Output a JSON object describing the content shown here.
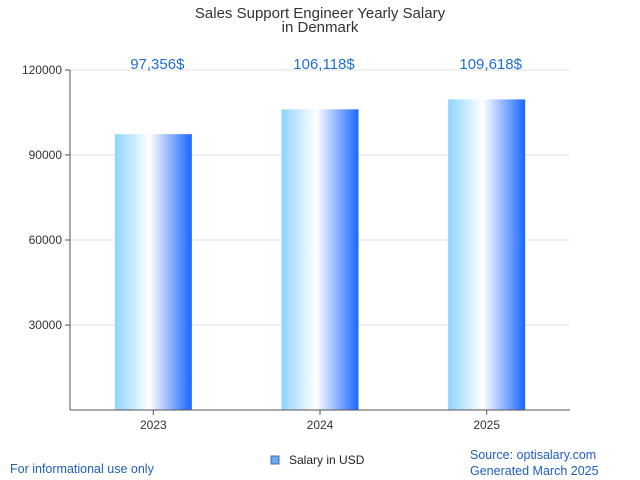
{
  "chart_data": {
    "type": "bar",
    "title_lines": [
      "Sales Support Engineer Yearly Salary",
      "in Denmark"
    ],
    "categories": [
      "2023",
      "2024",
      "2025"
    ],
    "series": [
      {
        "name": "Salary in USD",
        "values": [
          97356,
          106118,
          109618
        ]
      }
    ],
    "data_labels": [
      "97,356$",
      "106,118$",
      "109,618$"
    ],
    "ylim": [
      0,
      120000
    ],
    "yticks": [
      30000,
      60000,
      90000,
      120000
    ],
    "ytick_labels": [
      "30000",
      "60000",
      "90000",
      "120000"
    ],
    "grid": true,
    "legend_position": "bottom-center",
    "colors": {
      "bar_edge": "#1a66ff",
      "bar_light": "#ffffff",
      "bar_mid": "#8fd3ff",
      "label": "#1f6fd0"
    }
  },
  "footer": {
    "left": "For informational use only",
    "source": "Source: optisalary.com",
    "generated": "Generated March 2025"
  }
}
